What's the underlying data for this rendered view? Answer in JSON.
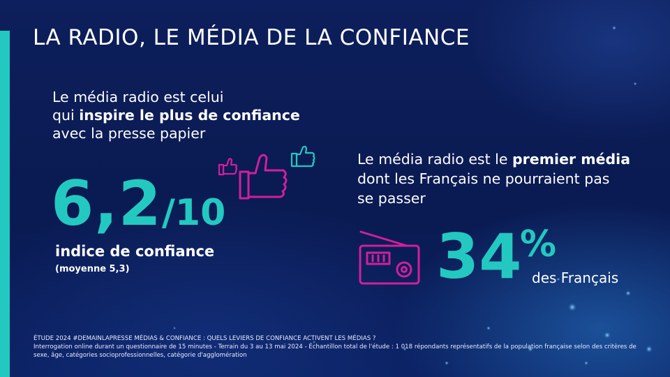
{
  "title": "LA RADIO, LE MÉDIA DE LA CONFIANCE",
  "left": {
    "line1": "Le média radio est celui",
    "line2_pre": "qui ",
    "line2_bold": "inspire le plus de confiance",
    "line3": "avec la presse papier",
    "score": "6,2",
    "score_denominator": "/10",
    "score_label": "indice de confiance",
    "average": "(moyenne 5,3)"
  },
  "right": {
    "line1_pre": "Le média radio est le ",
    "line1_bold": "premier média",
    "line2": "dont les Français ne pourraient pas",
    "line3": "se passer",
    "percent_value": "34",
    "percent_sign": "%",
    "percent_label": "des Français"
  },
  "footer": {
    "line1": "ÉTUDE 2024  #DEMAINLAPRESSE MÉDIAS & CONFIANCE : QUELS LEVIERS DE CONFIANCE ACTIVENT LES MÉDIAS ?",
    "line2": "Interrogation online durant un questionnaire de 15 minutes - Terrain du 3 au 13 mai 2024 - Échantillon total de l'étude : 1 018 répondants représentatifs de la population française selon des critères de sexe, âge, catégories socioprofessionnelles, catégorie d'agglomération"
  },
  "colors": {
    "accent": "#23c9c0",
    "magenta": "#d11f9c",
    "background": "#0d1f5c"
  },
  "icons": [
    "thumbs-up-icon",
    "radio-icon"
  ]
}
